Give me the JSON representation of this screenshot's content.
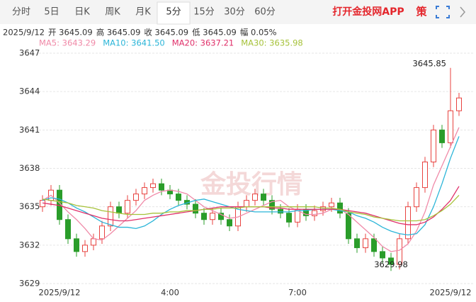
{
  "tabs": [
    "分时",
    "5日",
    "日K",
    "周K",
    "月K",
    "5分",
    "15分",
    "30分",
    "60分"
  ],
  "active_tab": "5分",
  "app_link": "打开金投网APP",
  "strategy": "策",
  "info": [
    "2025/9/12",
    "开 3645.09",
    "高 3645.09",
    "收 3645.09",
    "低 3645.09",
    "幅 0.05%"
  ],
  "watermark": "金投行情",
  "chart_data": {
    "type": "candlestick",
    "categories": [
      null,
      null,
      "2025/9/12",
      null,
      null,
      null,
      null,
      null,
      null,
      null,
      null,
      null,
      null,
      null,
      null,
      "4:00",
      null,
      null,
      null,
      null,
      null,
      null,
      null,
      null,
      null,
      null,
      null,
      null,
      null,
      null,
      "7:00",
      null,
      null,
      null,
      null,
      null,
      null,
      null,
      null,
      null,
      null,
      null,
      null,
      null,
      null,
      null,
      null,
      null,
      "2025/9/12",
      null
    ],
    "open": [
      3635.0,
      3635.5,
      3636.3,
      3634,
      3632.5,
      3631.5,
      3632,
      3632.5,
      3633.5,
      3635,
      3634.5,
      3635.5,
      3636,
      3636.5,
      3636.8,
      3636.3,
      3636,
      3635.5,
      3635.2,
      3634.5,
      3634,
      3634.5,
      3634,
      3633.5,
      3635,
      3635.5,
      3636,
      3635.5,
      3634.8,
      3634.5,
      3633.8,
      3634.8,
      3634.3,
      3634.7,
      3635,
      3635.3,
      3634.5,
      3632.5,
      3631.8,
      3632.5,
      3631.5,
      3631,
      3630.5,
      3632.5,
      3635,
      3636.5,
      3638.5,
      3641,
      3640,
      3642.5
    ],
    "high": [
      3635.9,
      3636.7,
      3636.7,
      3634.4,
      3632.9,
      3632.4,
      3632.9,
      3633.9,
      3635.4,
      3635.4,
      3635.9,
      3636.4,
      3636.9,
      3637.2,
      3637.2,
      3636.7,
      3636.4,
      3635.9,
      3635.6,
      3634.9,
      3634.9,
      3634.9,
      3634.4,
      3635.4,
      3635.9,
      3636.4,
      3636.4,
      3635.9,
      3635.2,
      3634.9,
      3635.2,
      3635.2,
      3635.1,
      3635.4,
      3635.7,
      3635.7,
      3634.9,
      3632.9,
      3632.9,
      3632.9,
      3631.9,
      3631.4,
      3632.9,
      3635.4,
      3636.9,
      3638.9,
      3641.4,
      3641.4,
      3645.85,
      3643.9
    ],
    "low": [
      3634.6,
      3635.1,
      3633.6,
      3632.1,
      3631.1,
      3631.1,
      3631.6,
      3632.1,
      3633.1,
      3634.1,
      3634.1,
      3635.1,
      3635.6,
      3636.1,
      3635.9,
      3635.6,
      3635.1,
      3634.8,
      3634.1,
      3633.6,
      3633.6,
      3633.6,
      3633.1,
      3633.1,
      3634.6,
      3635.1,
      3635.1,
      3634.4,
      3634.1,
      3633.4,
      3633.4,
      3633.9,
      3633.9,
      3634.3,
      3634.6,
      3634.1,
      3632.1,
      3631.4,
      3631.4,
      3631.1,
      3630.6,
      3629.98,
      3630.1,
      3632.1,
      3634.6,
      3636.1,
      3638.1,
      3639.6,
      3639.6,
      3642.1
    ],
    "close": [
      3635.5,
      3636.3,
      3634,
      3632.5,
      3631.5,
      3632,
      3632.5,
      3633.5,
      3635,
      3634.5,
      3635.5,
      3636,
      3636.5,
      3636.8,
      3636.3,
      3636,
      3635.5,
      3635.2,
      3634.5,
      3634,
      3634.5,
      3634,
      3633.5,
      3635,
      3635.5,
      3636,
      3635.5,
      3634.8,
      3634.5,
      3633.8,
      3634.8,
      3634.3,
      3634.7,
      3635,
      3635.3,
      3634.5,
      3632.5,
      3631.8,
      3632.5,
      3631.5,
      3631,
      3630.5,
      3632.5,
      3635,
      3636.5,
      3638.5,
      3641,
      3640,
      3642.5,
      3643.5
    ],
    "up_color": "#e8423f",
    "down_color": "#2a9d2a",
    "series": [
      {
        "name": "MA5: 3643.29",
        "color": "#f08aa8",
        "values": [
          3635.5,
          3635.9,
          3635.3,
          3634.6,
          3634.0,
          3633.3,
          3632.5,
          3632.4,
          3632.9,
          3633.5,
          3634.1,
          3634.7,
          3635.5,
          3635.9,
          3636.2,
          3636.3,
          3636.2,
          3636.0,
          3635.5,
          3635.0,
          3634.7,
          3634.4,
          3634.1,
          3634.2,
          3634.5,
          3634.8,
          3635.1,
          3635.4,
          3635.5,
          3635.0,
          3634.7,
          3634.4,
          3634.4,
          3634.5,
          3634.8,
          3634.8,
          3634.4,
          3633.8,
          3633.2,
          3632.6,
          3631.9,
          3631.5,
          3631.6,
          3632.1,
          3633.1,
          3634.6,
          3636.7,
          3638.2,
          3639.7,
          3641.2
        ]
      },
      {
        "name": "MA10: 3641.50",
        "color": "#2bb5d8",
        "values": [
          3635.5,
          3635.7,
          3635.6,
          3635.3,
          3634.9,
          3634.6,
          3634.2,
          3633.8,
          3633.6,
          3633.4,
          3633.4,
          3633.3,
          3633.5,
          3633.9,
          3634.4,
          3634.8,
          3635.1,
          3635.3,
          3635.5,
          3635.6,
          3635.4,
          3635.2,
          3635.0,
          3634.8,
          3634.7,
          3634.6,
          3634.6,
          3634.6,
          3634.6,
          3634.6,
          3634.7,
          3634.7,
          3634.8,
          3634.8,
          3634.8,
          3634.7,
          3634.6,
          3634.3,
          3634.1,
          3633.8,
          3633.4,
          3633.1,
          3632.9,
          3632.8,
          3632.9,
          3633.6,
          3635.0,
          3636.8,
          3638.8,
          3640.5
        ]
      },
      {
        "name": "MA20: 3637.21",
        "color": "#e0306a",
        "values": [
          3635.3,
          3635.2,
          3635.1,
          3634.9,
          3634.7,
          3634.5,
          3634.3,
          3634.1,
          3634.0,
          3633.9,
          3633.9,
          3634.0,
          3634.1,
          3634.2,
          3634.3,
          3634.4,
          3634.5,
          3634.6,
          3634.7,
          3634.8,
          3634.9,
          3635.0,
          3635.0,
          3635.0,
          3635.0,
          3635.0,
          3635.0,
          3634.9,
          3634.9,
          3634.8,
          3634.8,
          3634.8,
          3634.8,
          3634.8,
          3634.8,
          3634.8,
          3634.7,
          3634.6,
          3634.5,
          3634.3,
          3634.1,
          3633.9,
          3633.7,
          3633.6,
          3633.6,
          3633.8,
          3634.2,
          3634.8,
          3635.5,
          3636.6
        ]
      },
      {
        "name": "MA30: 3635.98",
        "color": "#a6c23a",
        "values": [
          3635.6,
          3635.5,
          3635.4,
          3635.3,
          3635.1,
          3635.0,
          3634.9,
          3634.7,
          3634.6,
          3634.5,
          3634.4,
          3634.4,
          3634.4,
          3634.5,
          3634.5,
          3634.6,
          3634.6,
          3634.7,
          3634.7,
          3634.8,
          3634.8,
          3634.9,
          3634.9,
          3634.9,
          3635.0,
          3635.0,
          3635.0,
          3635.0,
          3635.0,
          3635.0,
          3635.0,
          3635.0,
          3635.0,
          3634.9,
          3634.9,
          3634.8,
          3634.6,
          3634.5,
          3634.4,
          3634.2,
          3634.1,
          3634.0,
          3633.9,
          3633.9,
          3633.9,
          3634.0,
          3634.3,
          3634.7,
          3635.2,
          3635.9
        ]
      }
    ],
    "ylim": [
      3629,
      3647
    ],
    "yticks": [
      3629,
      3632,
      3635,
      3638,
      3641,
      3644,
      3647
    ],
    "grid": true
  }
}
